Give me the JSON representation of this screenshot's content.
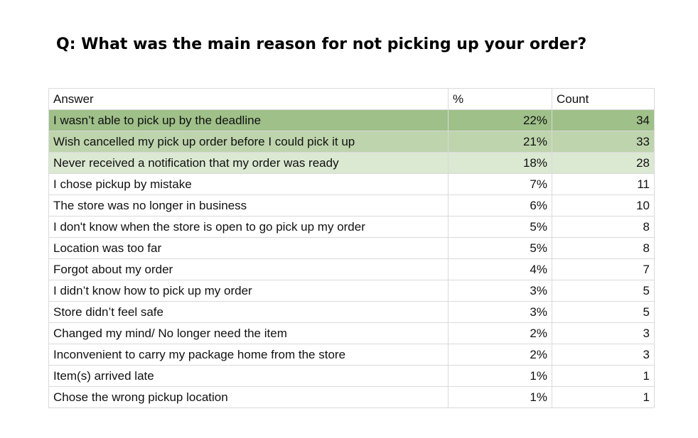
{
  "question": "Q: What was the main reason for not picking up your order?",
  "table": {
    "headers": {
      "answer": "Answer",
      "percent": "%",
      "count": "Count"
    },
    "rows": [
      {
        "answer": "I wasn’t able to pick up by the deadline",
        "percent": "22%",
        "count": "34",
        "highlight": "#9fc089"
      },
      {
        "answer": "Wish cancelled my pick up order before I could pick it up",
        "percent": "21%",
        "count": "33",
        "highlight": "#bed4ad"
      },
      {
        "answer": "Never received a notification that my order was ready",
        "percent": "18%",
        "count": "28",
        "highlight": "#dbe8d2"
      },
      {
        "answer": "I chose pickup by mistake",
        "percent": "7%",
        "count": "11"
      },
      {
        "answer": "The store was no longer in business",
        "percent": "6%",
        "count": "10"
      },
      {
        "answer": "I don't know when the store is open to go pick up my order",
        "percent": "5%",
        "count": "8"
      },
      {
        "answer": "Location was too far",
        "percent": "5%",
        "count": "8"
      },
      {
        "answer": "Forgot about my order",
        "percent": "4%",
        "count": "7"
      },
      {
        "answer": "I didn’t know how to pick up my order",
        "percent": "3%",
        "count": "5"
      },
      {
        "answer": "Store didn’t feel safe",
        "percent": "3%",
        "count": "5"
      },
      {
        "answer": "Changed my mind/ No longer need the item",
        "percent": "2%",
        "count": "3"
      },
      {
        "answer": "Inconvenient to carry my package home from the store",
        "percent": "2%",
        "count": "3"
      },
      {
        "answer": "Item(s) arrived late",
        "percent": "1%",
        "count": "1"
      },
      {
        "answer": "Chose the wrong pickup location",
        "percent": "1%",
        "count": "1"
      }
    ]
  }
}
